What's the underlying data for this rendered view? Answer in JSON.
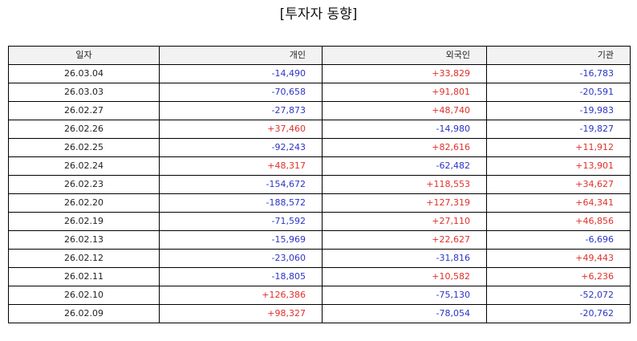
{
  "title": "[투자자 동향]",
  "colors": {
    "positive": "#e0302a",
    "negative": "#2b34c4",
    "header_bg": "#f2f2f2",
    "border": "#000000"
  },
  "table": {
    "columns": [
      "일자",
      "개인",
      "외국인",
      "기관"
    ],
    "rows": [
      {
        "date": "26.03.04",
        "individual": "-14,490",
        "foreign": "+33,829",
        "institution": "-16,783"
      },
      {
        "date": "26.03.03",
        "individual": "-70,658",
        "foreign": "+91,801",
        "institution": "-20,591"
      },
      {
        "date": "26.02.27",
        "individual": "-27,873",
        "foreign": "+48,740",
        "institution": "-19,983"
      },
      {
        "date": "26.02.26",
        "individual": "+37,460",
        "foreign": "-14,980",
        "institution": "-19,827"
      },
      {
        "date": "26.02.25",
        "individual": "-92,243",
        "foreign": "+82,616",
        "institution": "+11,912"
      },
      {
        "date": "26.02.24",
        "individual": "+48,317",
        "foreign": "-62,482",
        "institution": "+13,901"
      },
      {
        "date": "26.02.23",
        "individual": "-154,672",
        "foreign": "+118,553",
        "institution": "+34,627"
      },
      {
        "date": "26.02.20",
        "individual": "-188,572",
        "foreign": "+127,319",
        "institution": "+64,341"
      },
      {
        "date": "26.02.19",
        "individual": "-71,592",
        "foreign": "+27,110",
        "institution": "+46,856"
      },
      {
        "date": "26.02.13",
        "individual": "-15,969",
        "foreign": "+22,627",
        "institution": "-6,696"
      },
      {
        "date": "26.02.12",
        "individual": "-23,060",
        "foreign": "-31,816",
        "institution": "+49,443"
      },
      {
        "date": "26.02.11",
        "individual": "-18,805",
        "foreign": "+10,582",
        "institution": "+6,236"
      },
      {
        "date": "26.02.10",
        "individual": "+126,386",
        "foreign": "-75,130",
        "institution": "-52,072"
      },
      {
        "date": "26.02.09",
        "individual": "+98,327",
        "foreign": "-78,054",
        "institution": "-20,762"
      }
    ]
  }
}
